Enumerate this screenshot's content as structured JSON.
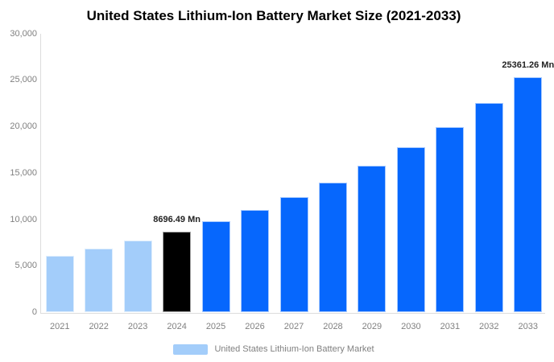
{
  "title": "United States Lithium-Ion Battery Market Size (2021-2033)",
  "y_axis": {
    "tick_labels": [
      "30,000",
      "25,000",
      "20,000",
      "15,000",
      "10,000",
      "5,000",
      "0"
    ],
    "tick_values": [
      30000,
      25000,
      20000,
      15000,
      10000,
      5000,
      0
    ]
  },
  "legend": {
    "label": "United States Lithium-Ion Battery Market",
    "swatch_color": "#A3CDFA"
  },
  "colors": {
    "past_bar_light_blue": "#A3CDFA",
    "current_bar_black": "#000000",
    "forecast_bar_blue": "#0667FD",
    "axis_line": "#DDDDDD",
    "axis_text": "#808080",
    "data_label_text": "#222222",
    "title_text": "#000000"
  },
  "chart_data": {
    "type": "bar",
    "title": "United States Lithium-Ion Battery Market Size (2021-2033)",
    "series_name": "United States Lithium-Ion Battery Market",
    "categories": [
      "2021",
      "2022",
      "2023",
      "2024",
      "2025",
      "2026",
      "2027",
      "2028",
      "2029",
      "2030",
      "2031",
      "2032",
      "2033"
    ],
    "values": [
      6086,
      6855,
      7721,
      8696.49,
      9795,
      11032,
      12425,
      13994,
      15761,
      17752,
      19994,
      22519,
      25361.26
    ],
    "bar_colors": [
      "#A3CDFA",
      "#A3CDFA",
      "#A3CDFA",
      "#000000",
      "#0667FD",
      "#0667FD",
      "#0667FD",
      "#0667FD",
      "#0667FD",
      "#0667FD",
      "#0667FD",
      "#0667FD",
      "#0667FD"
    ],
    "data_labels": [
      {
        "category": "2024",
        "text": "8696.49 Mn"
      },
      {
        "category": "2033",
        "text": "25361.26 Mn"
      }
    ],
    "xlabel": "",
    "ylabel": "",
    "ylim": [
      0,
      30000
    ],
    "grid": false,
    "legend_position": "bottom"
  }
}
